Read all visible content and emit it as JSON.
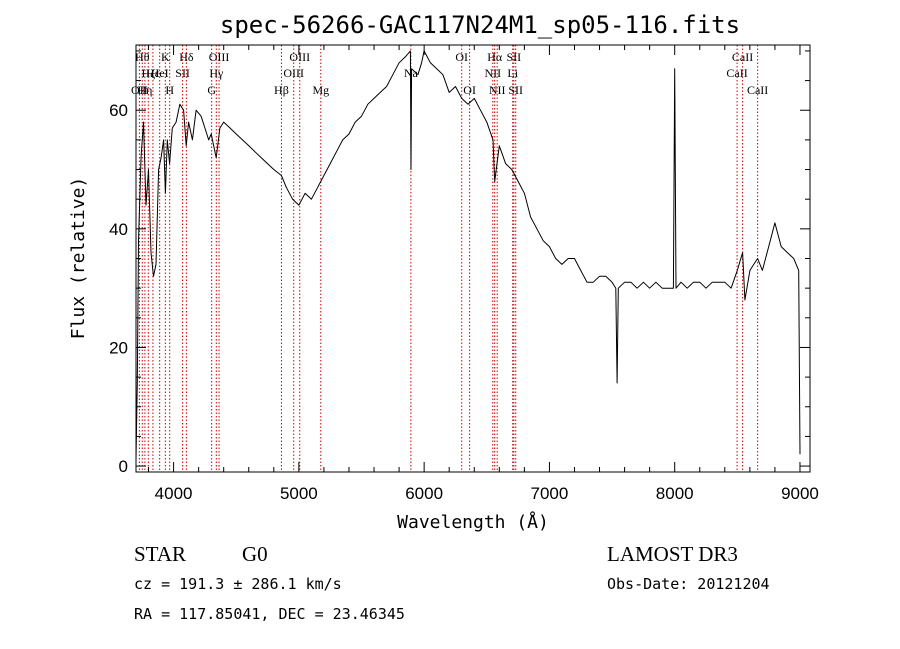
{
  "chart_data": {
    "type": "line",
    "title": "spec-56266-GAC117N24M1_sp05-116.fits",
    "xlabel": "Wavelength (Å)",
    "ylabel": "Flux (relative)",
    "xlim": [
      3700,
      9080
    ],
    "ylim": [
      -1,
      71
    ],
    "x_ticks": [
      4000,
      5000,
      6000,
      7000,
      8000,
      9000
    ],
    "x_tick_labels": [
      "4000",
      "5000",
      "6000",
      "7000",
      "8000",
      "9000"
    ],
    "y_ticks": [
      0,
      20,
      40,
      60
    ],
    "y_tick_labels": [
      "0",
      "20",
      "40",
      "60"
    ],
    "grid": false,
    "series": [
      {
        "x": [
          3700,
          3710,
          3720,
          3730,
          3740,
          3760,
          3780,
          3800,
          3820,
          3840,
          3860,
          3880,
          3900,
          3920,
          3935,
          3950,
          3968,
          3990,
          4020,
          4050,
          4080,
          4101,
          4120,
          4150,
          4180,
          4220,
          4250,
          4280,
          4300,
          4320,
          4340,
          4370,
          4400,
          4450,
          4500,
          4550,
          4600,
          4650,
          4700,
          4750,
          4800,
          4861,
          4900,
          4950,
          5000,
          5050,
          5100,
          5150,
          5200,
          5250,
          5300,
          5350,
          5400,
          5450,
          5500,
          5550,
          5600,
          5650,
          5700,
          5750,
          5800,
          5850,
          5890,
          5895,
          5900,
          5950,
          5980,
          6000,
          6050,
          6100,
          6150,
          6200,
          6250,
          6300,
          6350,
          6400,
          6450,
          6500,
          6550,
          6563,
          6600,
          6650,
          6700,
          6750,
          6800,
          6850,
          6900,
          6950,
          7000,
          7050,
          7100,
          7150,
          7200,
          7250,
          7300,
          7350,
          7400,
          7450,
          7500,
          7530,
          7540,
          7550,
          7600,
          7650,
          7700,
          7750,
          7800,
          7850,
          7900,
          7950,
          7990,
          8000,
          8010,
          8050,
          8100,
          8150,
          8200,
          8250,
          8300,
          8350,
          8400,
          8450,
          8500,
          8542,
          8560,
          8600,
          8662,
          8700,
          8750,
          8800,
          8850,
          8900,
          8950,
          8990,
          9000
        ],
        "y": [
          1,
          14,
          38,
          45,
          52,
          58,
          44,
          50,
          36,
          32,
          34,
          50,
          52,
          55,
          46,
          55,
          51,
          57,
          58,
          61,
          60,
          54,
          58,
          55,
          60,
          59,
          57,
          55,
          56,
          54,
          52,
          57,
          58,
          57,
          56,
          55,
          54,
          53,
          52,
          51,
          50,
          49,
          47,
          45,
          44,
          46,
          45,
          47,
          49,
          51,
          53,
          55,
          56,
          58,
          59,
          61,
          62,
          63,
          64,
          66,
          68,
          69,
          70,
          50,
          67,
          66,
          68,
          70,
          68,
          67,
          66,
          63,
          64,
          62,
          61,
          62,
          60,
          58,
          55,
          48,
          54,
          51,
          50,
          48,
          46,
          42,
          40,
          38,
          37,
          35,
          34,
          35,
          35,
          33,
          31,
          31,
          32,
          32,
          31,
          30,
          14,
          30,
          31,
          31,
          30,
          31,
          30,
          31,
          30,
          30,
          30,
          67,
          30,
          31,
          30,
          31,
          31,
          30,
          31,
          31,
          31,
          30,
          33,
          36,
          28,
          33,
          35,
          33,
          37,
          41,
          37,
          36,
          35,
          33,
          2
        ]
      }
    ],
    "lines": [
      {
        "x": 3727,
        "label": "OII",
        "row": 3
      },
      {
        "x": 3750,
        "label": "Hθ",
        "row": 1
      },
      {
        "x": 3771,
        "label": "Hη",
        "row": 3
      },
      {
        "x": 3798,
        "label": "Hζ",
        "row": 2
      },
      {
        "x": 3835,
        "label": "Hε",
        "row": 2
      },
      {
        "x": 3889,
        "label": "HeI",
        "row": 2
      },
      {
        "x": 3934,
        "label": "K",
        "row": 1
      },
      {
        "x": 3969,
        "label": "H",
        "row": 3
      },
      {
        "x": 4072,
        "label": "SII",
        "row": 2
      },
      {
        "x": 4102,
        "label": "Hδ",
        "row": 1
      },
      {
        "x": 4304,
        "label": "G",
        "row": 3
      },
      {
        "x": 4341,
        "label": "Hγ",
        "row": 2
      },
      {
        "x": 4363,
        "label": "OIII",
        "row": 1
      },
      {
        "x": 4861,
        "label": "Hβ",
        "row": 3
      },
      {
        "x": 4959,
        "label": "OIII",
        "row": 2
      },
      {
        "x": 5007,
        "label": "OIII",
        "row": 1
      },
      {
        "x": 5175,
        "label": "Mg",
        "row": 3
      },
      {
        "x": 5894,
        "label": "Na",
        "row": 2
      },
      {
        "x": 6300,
        "label": "OI",
        "row": 1
      },
      {
        "x": 6363,
        "label": "OI",
        "row": 3
      },
      {
        "x": 6548,
        "label": "NII",
        "row": 2
      },
      {
        "x": 6563,
        "label": "Hα",
        "row": 1
      },
      {
        "x": 6583,
        "label": "NII",
        "row": 3
      },
      {
        "x": 6707,
        "label": "Li",
        "row": 2
      },
      {
        "x": 6716,
        "label": "SII",
        "row": 1
      },
      {
        "x": 6731,
        "label": "SII",
        "row": 3
      },
      {
        "x": 8498,
        "label": "CaII",
        "row": 2
      },
      {
        "x": 8542,
        "label": "CaII",
        "row": 1
      },
      {
        "x": 8662,
        "label": "CaII",
        "row": 3
      }
    ]
  },
  "info": {
    "object_class": "STAR",
    "subclass": "G0",
    "survey": "LAMOST DR3",
    "cz": "cz = 191.3 ± 286.1 km/s",
    "obs_date": "Obs-Date: 20121204",
    "coords": "RA = 117.85041, DEC =  23.46345"
  },
  "colors": {
    "spectrum": "#000000",
    "line_markers": "#cc0000",
    "axes": "#000000",
    "background": "#ffffff"
  }
}
